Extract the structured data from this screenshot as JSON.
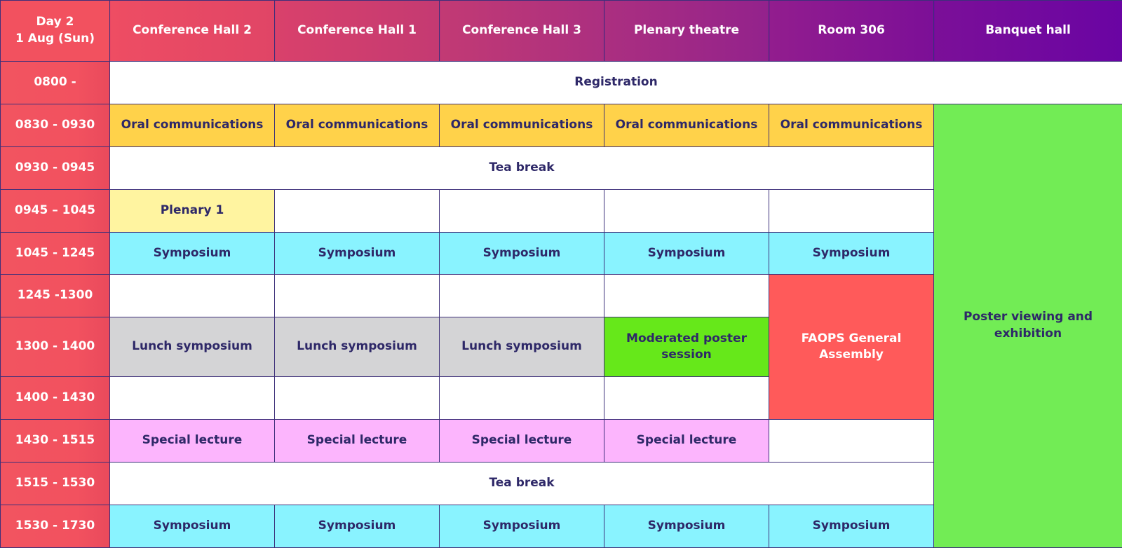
{
  "header": {
    "day_line1": "Day 2",
    "day_line2": "1 Aug (Sun)",
    "venues": [
      "Conference Hall 2",
      "Conference Hall 1",
      "Conference Hall 3",
      "Plenary theatre",
      "Room 306",
      "Banquet hall"
    ]
  },
  "times": [
    "0800 -",
    "0830 - 0930",
    "0930 - 0945",
    "0945 – 1045",
    "1045 - 1245",
    "1245 -1300",
    "1300 - 1400",
    "1400 - 1430",
    "1430 - 1515",
    "1515 - 1530",
    "1530 - 1730"
  ],
  "sessions": {
    "registration": "Registration",
    "oral": "Oral communications",
    "tea_break": "Tea break",
    "plenary": "Plenary 1",
    "symposium": "Symposium",
    "lunch_symposium": "Lunch symposium",
    "moderated_poster": "Moderated poster session",
    "faops": "FAOPS General Assembly",
    "special_lecture": "Special lecture",
    "poster_viewing": "Poster viewing and exhibition"
  },
  "colors": {
    "time_column": "#f2515f",
    "border": "#3d2f7a",
    "text": "#2e2868",
    "oral": "#ffd24a",
    "plenary": "#fff4a0",
    "symposium": "#89f3ff",
    "lunch": "#d4d4d6",
    "moderated_poster": "#66e81a",
    "faops": "#ff5a5a",
    "special_lecture": "#fcb5fd",
    "poster_viewing": "#72ec55"
  }
}
